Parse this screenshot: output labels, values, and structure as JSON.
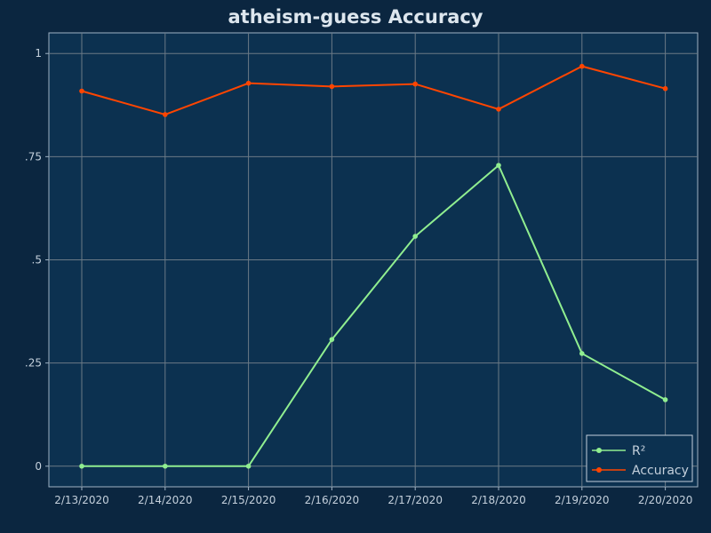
{
  "colors": {
    "background": "#0b2640",
    "plot_background": "#0c3150",
    "grid": "#6b7a86",
    "axis": "#9fb3c4",
    "text": "#c4d0dc",
    "series": [
      "#90ee90",
      "#ff4500"
    ]
  },
  "chart_data": {
    "type": "line",
    "title": "atheism-guess Accuracy",
    "xlabel": "",
    "ylabel": "",
    "categories": [
      "2/13/2020",
      "2/14/2020",
      "2/15/2020",
      "2/16/2020",
      "2/17/2020",
      "2/18/2020",
      "2/19/2020",
      "2/20/2020"
    ],
    "series": [
      {
        "name": "R²",
        "values": [
          0,
          0,
          0,
          0.307,
          0.557,
          0.729,
          0.273,
          0.161
        ]
      },
      {
        "name": "Accuracy",
        "values": [
          0.909,
          0.852,
          0.928,
          0.92,
          0.926,
          0.865,
          0.969,
          0.915
        ]
      }
    ],
    "yticks": [
      0,
      0.25,
      0.5,
      0.75,
      1
    ],
    "yticklabels": [
      "0",
      ".25",
      ".5",
      ".75",
      "1"
    ],
    "ylim": [
      -0.05,
      1.05
    ],
    "grid": true,
    "legend": "bottom-right"
  }
}
